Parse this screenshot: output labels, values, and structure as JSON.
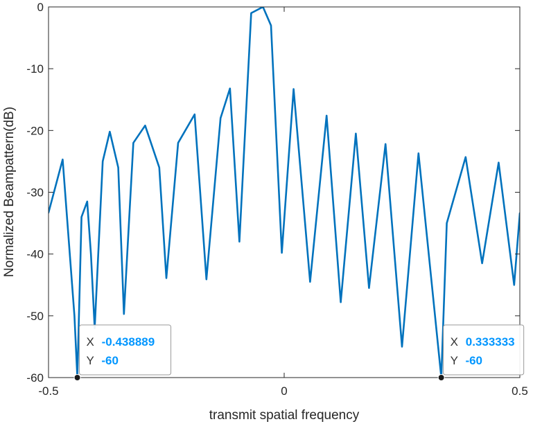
{
  "chart_data": {
    "type": "line",
    "title": "",
    "xlabel": "transmit spatial frequency",
    "ylabel": "Normalized Beampattern(dB)",
    "xlim": [
      -0.5,
      0.5
    ],
    "ylim": [
      -60,
      0
    ],
    "xticks": [
      -0.5,
      0,
      0.5
    ],
    "xtick_labels": [
      "-0.5",
      "0",
      "0.5"
    ],
    "yticks": [
      -60,
      -50,
      -40,
      -30,
      -20,
      -10,
      0
    ],
    "ytick_labels": [
      "-60",
      "-50",
      "-40",
      "-30",
      "-20",
      "-10",
      "0"
    ],
    "grid": false,
    "line_color": "#0072BD",
    "series": [
      {
        "x": [
          -0.5,
          -0.47,
          -0.445,
          -0.438889,
          -0.43,
          -0.418,
          -0.41,
          -0.402,
          -0.385,
          -0.37,
          -0.352,
          -0.34,
          -0.32,
          -0.295,
          -0.265,
          -0.25,
          -0.225,
          -0.19,
          -0.165,
          -0.135,
          -0.115,
          -0.095,
          -0.07,
          -0.045,
          -0.028,
          -0.005,
          0.02,
          0.055,
          0.09,
          0.12,
          0.152,
          0.18,
          0.215,
          0.25,
          0.285,
          0.333333,
          0.345,
          0.385,
          0.42,
          0.455,
          0.488,
          0.5
        ],
        "y": [
          -33.3,
          -24.7,
          -50,
          -60,
          -34,
          -31.5,
          -40,
          -52,
          -25,
          -20.2,
          -26,
          -49.7,
          -22,
          -19.2,
          -26,
          -43.9,
          -22,
          -17.4,
          -44.1,
          -18,
          -13.2,
          -38,
          -1,
          0,
          -3,
          -39.8,
          -13.3,
          -44.5,
          -17.6,
          -47.8,
          -20.5,
          -45.5,
          -22.2,
          -55,
          -23.7,
          -60,
          -35,
          -24.3,
          -41.5,
          -25.2,
          -45,
          -33.4
        ]
      }
    ],
    "datatips": [
      {
        "x_label": "X",
        "x_value": "-0.438889",
        "y_label": "Y",
        "y_value": "-60",
        "x": -0.438889,
        "y": -60
      },
      {
        "x_label": "X",
        "x_value": "0.333333",
        "y_label": "Y",
        "y_value": "-60",
        "x": 0.333333,
        "y": -60
      }
    ],
    "datatip_value_color": "#0096FF"
  }
}
